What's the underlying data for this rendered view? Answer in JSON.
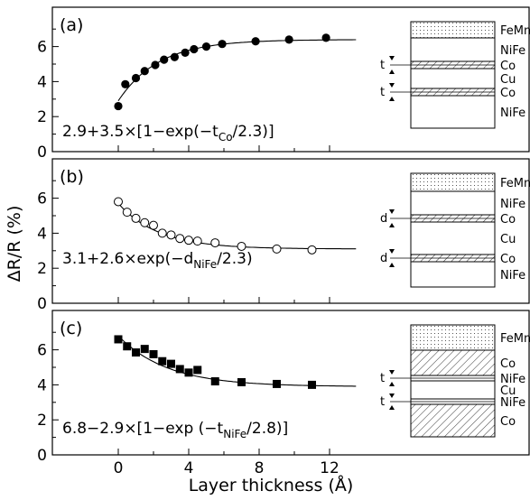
{
  "figure": {
    "ylabel": "ΔR/R (%)",
    "xlabel": "Layer thickness (Å)",
    "x_ticks": [
      "0",
      "4",
      "8",
      "12"
    ]
  },
  "chart_data": [
    {
      "type": "scatter",
      "panel_label": "(a)",
      "marker": "filled-circle",
      "formula_parts": [
        "2.9+3.5×[1−exp(−t",
        "Co",
        "/2.3)]"
      ],
      "xlim": [
        -2,
        16
      ],
      "ylim": [
        0,
        7.5
      ],
      "y_ticks": [
        "0",
        "2",
        "4",
        "6"
      ],
      "series": [
        {
          "x": [
            0.0,
            0.4,
            1.0,
            1.5,
            2.1,
            2.6,
            3.2,
            3.8,
            4.3,
            5.0,
            5.9,
            7.8,
            9.7,
            11.8
          ],
          "y": [
            2.6,
            3.85,
            4.2,
            4.6,
            4.95,
            5.25,
            5.4,
            5.65,
            5.85,
            6.0,
            6.15,
            6.3,
            6.4,
            6.5
          ]
        }
      ],
      "fit": {
        "kind": "saturating",
        "a": 2.9,
        "b": 3.5,
        "tau": 2.3,
        "x_range": [
          0,
          13.5
        ]
      },
      "schematic": {
        "layers": [
          "FeMn",
          "NiFe",
          "Co",
          "Cu",
          "Co",
          "NiFe"
        ],
        "dim_label": "t"
      }
    },
    {
      "type": "scatter",
      "panel_label": "(b)",
      "marker": "open-circle",
      "formula_parts": [
        "3.1+2.6×exp(−d",
        "NiFe",
        "/2.3)"
      ],
      "xlim": [
        -2,
        16
      ],
      "ylim": [
        0,
        7.5
      ],
      "y_ticks": [
        "0",
        "2",
        "4",
        "6"
      ],
      "series": [
        {
          "x": [
            0.0,
            0.5,
            1.0,
            1.5,
            2.0,
            2.5,
            3.0,
            3.5,
            4.0,
            4.5,
            5.5,
            7.0,
            9.0,
            11.0
          ],
          "y": [
            5.8,
            5.2,
            4.85,
            4.6,
            4.45,
            4.0,
            3.9,
            3.7,
            3.6,
            3.55,
            3.45,
            3.25,
            3.1,
            3.05
          ]
        }
      ],
      "fit": {
        "kind": "decay",
        "a": 3.1,
        "b": 2.6,
        "tau": 2.3,
        "x_range": [
          0,
          13.5
        ]
      },
      "schematic": {
        "layers": [
          "FeMn",
          "NiFe",
          "Co",
          "Cu",
          "Co",
          "NiFe"
        ],
        "dim_label": "d"
      }
    },
    {
      "type": "scatter",
      "panel_label": "(c)",
      "marker": "filled-square",
      "formula_parts": [
        "6.8−2.9×[1−exp (−t",
        "NiFe",
        "/2.8)]"
      ],
      "xlim": [
        -2,
        16
      ],
      "ylim": [
        0,
        7.5
      ],
      "y_ticks": [
        "0",
        "2",
        "4",
        "6"
      ],
      "series": [
        {
          "x": [
            0.0,
            0.5,
            1.0,
            1.5,
            2.0,
            2.5,
            3.0,
            3.5,
            4.0,
            4.5,
            5.5,
            7.0,
            9.0,
            11.0
          ],
          "y": [
            6.6,
            6.2,
            5.85,
            6.05,
            5.75,
            5.35,
            5.2,
            4.9,
            4.7,
            4.85,
            4.2,
            4.15,
            4.05,
            4.0
          ]
        }
      ],
      "fit": {
        "kind": "decay",
        "a": 3.9,
        "b": 2.9,
        "tau": 2.8,
        "x_range": [
          0,
          13.5
        ]
      },
      "schematic": {
        "layers": [
          "FeMn",
          "Co",
          "NiFe",
          "Cu",
          "NiFe",
          "Co"
        ],
        "dim_label": "t"
      }
    }
  ]
}
